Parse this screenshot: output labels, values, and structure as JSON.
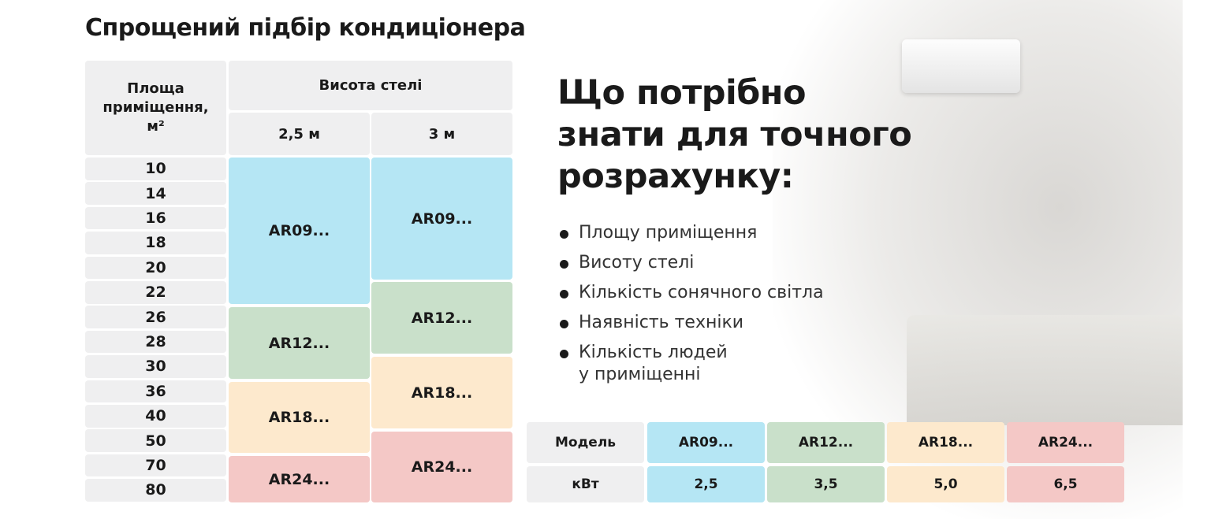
{
  "title": "Спрощений підбір кондиціонера",
  "selection_table": {
    "area_header": [
      "Площа",
      "приміщення,",
      "м²"
    ],
    "ceiling_header": "Висота стелі",
    "heights": [
      "2,5 м",
      "3 м"
    ],
    "areas": [
      "10",
      "14",
      "16",
      "18",
      "20",
      "22",
      "26",
      "28",
      "30",
      "36",
      "40",
      "50",
      "70",
      "80"
    ],
    "columns": [
      [
        "AR09...",
        "AR12...",
        "AR18...",
        "AR24..."
      ],
      [
        "AR09...",
        "AR12...",
        "AR18...",
        "AR24..."
      ]
    ]
  },
  "info": {
    "heading": [
      "Що потрібно",
      "знати для точного",
      "розрахунку:"
    ],
    "items": [
      "Площу приміщення",
      "Висоту стелі",
      "Кількість сонячного світла",
      "Наявність техніки",
      [
        "Кількість людей",
        "у приміщенні"
      ]
    ]
  },
  "model_table": {
    "row_labels": [
      "Модель",
      "кВт"
    ],
    "models": [
      "AR09...",
      "AR12...",
      "AR18...",
      "AR24..."
    ],
    "kw": [
      "2,5",
      "3,5",
      "5,0",
      "6,5"
    ]
  }
}
